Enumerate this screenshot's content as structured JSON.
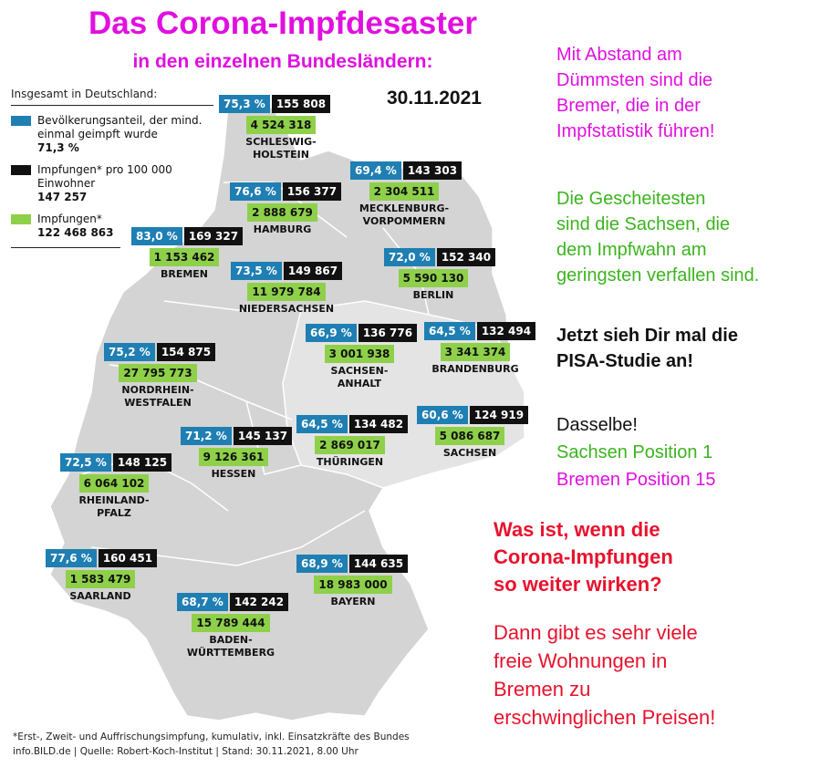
{
  "title": "Das Corona-Impfdesaster",
  "subtitle": "in den einzelnen Bundesländern:",
  "date": "30.11.2021",
  "legend": {
    "header": "Insgesamt in Deutschland:",
    "share_label": "Bevölkerungsanteil, der mind. einmal geimpft wurde",
    "share_value": "71,3 %",
    "per100k_label": "Impfungen* pro 100 000 Einwohner",
    "per100k_value": "147 257",
    "total_label": "Impfungen*",
    "total_value": "122 468 863",
    "colors": {
      "share": "#1f7fb3",
      "per100k": "#111111",
      "total": "#8ed04a"
    }
  },
  "states": [
    {
      "name": "SCHLESWIG-\nHOLSTEIN",
      "share": "75,3 %",
      "per100k": "155 808",
      "total": "4 524 318"
    },
    {
      "name": "MECKLENBURG-\nVORPOMMERN",
      "share": "69,4 %",
      "per100k": "143 303",
      "total": "2 304 511"
    },
    {
      "name": "HAMBURG",
      "share": "76,6 %",
      "per100k": "156 377",
      "total": "2 888 679"
    },
    {
      "name": "BREMEN",
      "share": "83,0 %",
      "per100k": "169 327",
      "total": "1 153 462"
    },
    {
      "name": "BERLIN",
      "share": "72,0 %",
      "per100k": "152 340",
      "total": "5 590 130"
    },
    {
      "name": "NIEDERSACHSEN",
      "share": "73,5 %",
      "per100k": "149 867",
      "total": "11 979 784"
    },
    {
      "name": "BRANDENBURG",
      "share": "64,5 %",
      "per100k": "132 494",
      "total": "3 341 374"
    },
    {
      "name": "SACHSEN-\nANHALT",
      "share": "66,9 %",
      "per100k": "136 776",
      "total": "3 001 938"
    },
    {
      "name": "NORDRHEIN-\nWESTFALEN",
      "share": "75,2 %",
      "per100k": "154 875",
      "total": "27 795 773"
    },
    {
      "name": "SACHSEN",
      "share": "60,6 %",
      "per100k": "124 919",
      "total": "5 086 687"
    },
    {
      "name": "THÜRINGEN",
      "share": "64,5 %",
      "per100k": "134 482",
      "total": "2 869 017"
    },
    {
      "name": "HESSEN",
      "share": "71,2 %",
      "per100k": "145 137",
      "total": "9 126 361"
    },
    {
      "name": "RHEINLAND-\nPFALZ",
      "share": "72,5 %",
      "per100k": "148 125",
      "total": "6 064 102"
    },
    {
      "name": "SAARLAND",
      "share": "77,6 %",
      "per100k": "160 451",
      "total": "1 583 479"
    },
    {
      "name": "BAYERN",
      "share": "68,9 %",
      "per100k": "144 635",
      "total": "18 983 000"
    },
    {
      "name": "BADEN-\nWÜRTTEMBERG",
      "share": "68,7 %",
      "per100k": "142 242",
      "total": "15 789 444"
    }
  ],
  "footnote": {
    "line1": "*Erst-, Zweit- und Auffrischungsimpfung, kumulativ, inkl. Einsatzkräfte des Bundes",
    "line2": "info.BILD.de | Quelle: Robert-Koch-Institut | Stand: 30.11.2021, 8.00 Uhr"
  },
  "commentary": {
    "magenta_1": "Mit Abstand am\nDümmsten sind die\nBremer, die in der\nImpfstatistik führen!",
    "green_1": "Die Gescheitesten\nsind die Sachsen, die\ndem Impfwahn am\ngeringsten verfallen sind.",
    "black_1": "Jetzt sieh Dir mal die\nPISA-Studie an!",
    "black_2": "Dasselbe!",
    "green_2": "Sachsen Position 1",
    "magenta_2": "Bremen Position 15",
    "red_bold": "Was ist, wenn die\nCorona-Impfungen\nso weiter wirken?",
    "red_normal": "Dann gibt es sehr viele\nfreie Wohnungen in\nBremen zu\nerschwinglichen Preisen!",
    "colors": {
      "magenta": "#e010e0",
      "green": "#3cb41e",
      "black": "#111111",
      "red": "#e8122d"
    }
  },
  "map_colors": {
    "land": "#d3d3d3",
    "land_light": "#e4e4e4",
    "border": "#ffffff"
  }
}
